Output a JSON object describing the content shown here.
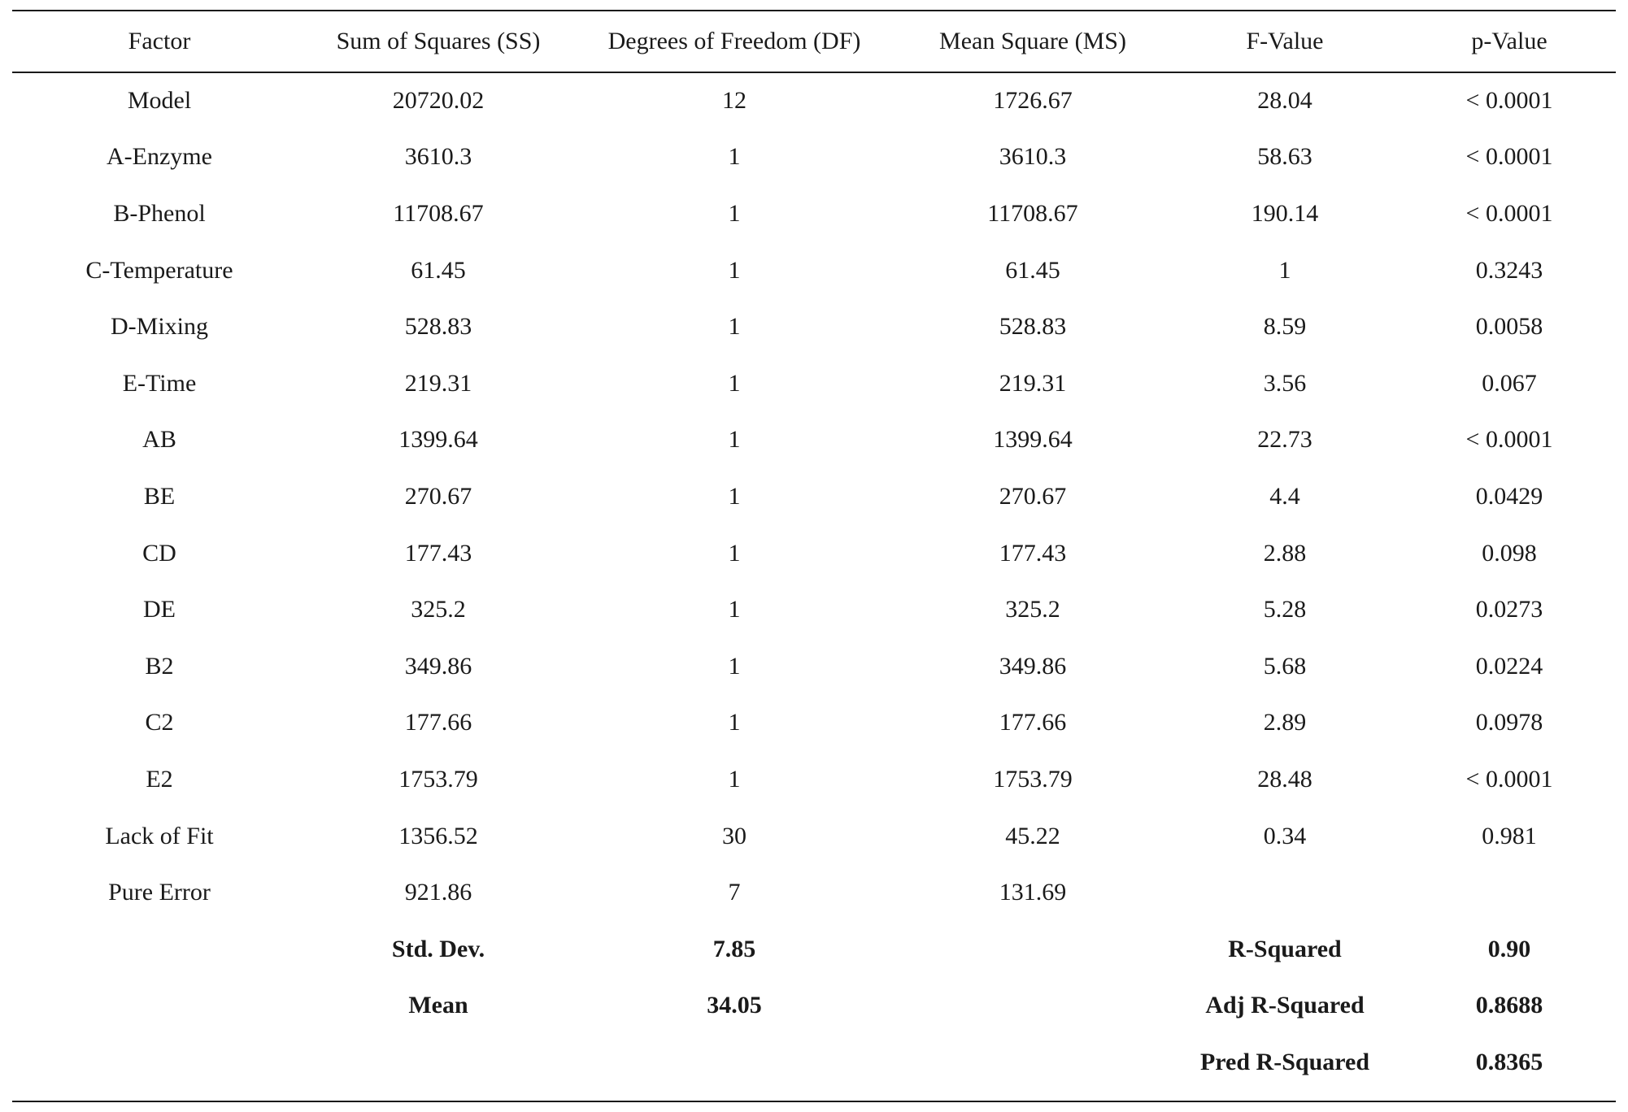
{
  "table": {
    "headers": [
      "Factor",
      "Sum of Squares (SS)",
      "Degrees of Freedom (DF)",
      "Mean Square (MS)",
      "F-Value",
      "p-Value"
    ],
    "rows": [
      [
        "Model",
        "20720.02",
        "12",
        "1726.67",
        "28.04",
        "< 0.0001"
      ],
      [
        "A-Enzyme",
        "3610.3",
        "1",
        "3610.3",
        "58.63",
        "< 0.0001"
      ],
      [
        "B-Phenol",
        "11708.67",
        "1",
        "11708.67",
        "190.14",
        "< 0.0001"
      ],
      [
        "C-Temperature",
        "61.45",
        "1",
        "61.45",
        "1",
        "0.3243"
      ],
      [
        "D-Mixing",
        "528.83",
        "1",
        "528.83",
        "8.59",
        "0.0058"
      ],
      [
        "E-Time",
        "219.31",
        "1",
        "219.31",
        "3.56",
        "0.067"
      ],
      [
        "AB",
        "1399.64",
        "1",
        "1399.64",
        "22.73",
        "< 0.0001"
      ],
      [
        "BE",
        "270.67",
        "1",
        "270.67",
        "4.4",
        "0.0429"
      ],
      [
        "CD",
        "177.43",
        "1",
        "177.43",
        "2.88",
        "0.098"
      ],
      [
        "DE",
        "325.2",
        "1",
        "325.2",
        "5.28",
        "0.0273"
      ],
      [
        "B2",
        "349.86",
        "1",
        "349.86",
        "5.68",
        "0.0224"
      ],
      [
        "C2",
        "177.66",
        "1",
        "177.66",
        "2.89",
        "0.0978"
      ],
      [
        "E2",
        "1753.79",
        "1",
        "1753.79",
        "28.48",
        "< 0.0001"
      ],
      [
        "Lack of Fit",
        "1356.52",
        "30",
        "45.22",
        "0.34",
        "0.981"
      ],
      [
        "Pure Error",
        "921.86",
        "7",
        "131.69",
        "",
        ""
      ]
    ],
    "summary": {
      "std_dev_label": "Std. Dev.",
      "std_dev_value": "7.85",
      "mean_label": "Mean",
      "mean_value": "34.05",
      "r_squared_label": "R-Squared",
      "r_squared_value": "0.90",
      "adj_r_squared_label": "Adj R-Squared",
      "adj_r_squared_value": "0.8688",
      "pred_r_squared_label": "Pred R-Squared",
      "pred_r_squared_value": "0.8365"
    }
  }
}
